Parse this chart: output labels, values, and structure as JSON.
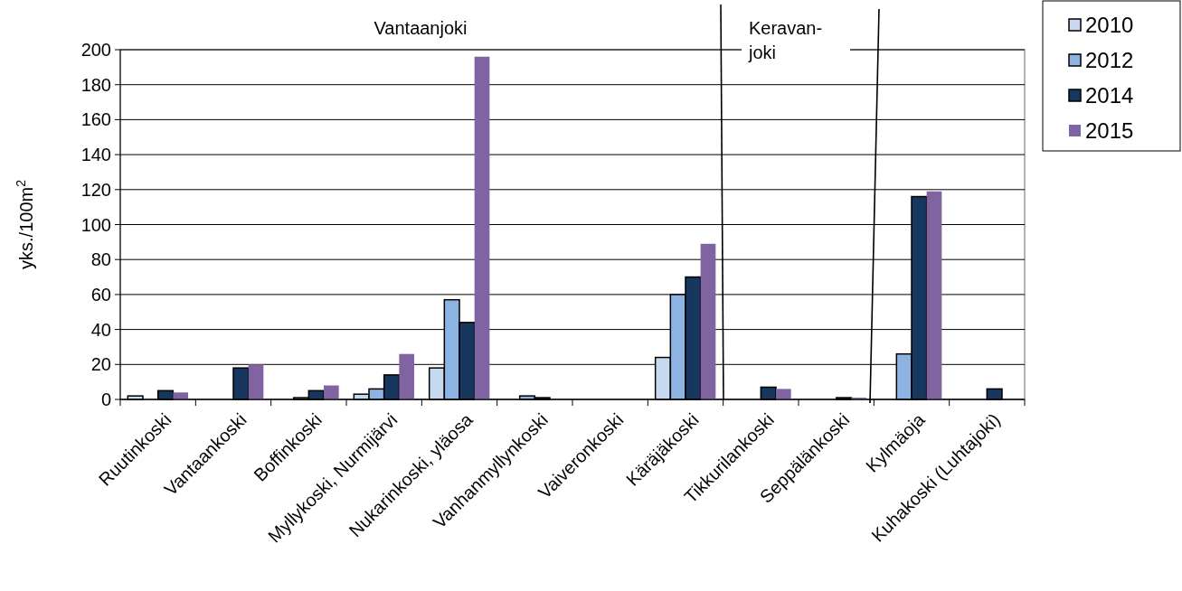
{
  "chart_data": {
    "type": "bar",
    "categories": [
      "Ruutinkoski",
      "Vantaankoski",
      "Boffinkoski",
      "Myllykoski, Nurmijärvi",
      "Nukarinkoski, yläosa",
      "Vanhanmyllynkoski",
      "Vaiveronkoski",
      "Käräjäkoski",
      "Tikkurilankoski",
      "Seppälänkoski",
      "Kylmäoja",
      "Kuhakoski (Luhtajoki)"
    ],
    "series": [
      {
        "name": "2010",
        "color": "#c6d9f0",
        "values": [
          2,
          null,
          null,
          3,
          18,
          null,
          null,
          24,
          null,
          null,
          null,
          null
        ]
      },
      {
        "name": "2012",
        "color": "#8db3e2",
        "values": [
          null,
          null,
          1,
          6,
          57,
          2,
          null,
          60,
          null,
          null,
          26,
          null
        ]
      },
      {
        "name": "2014",
        "color": "#17375e",
        "values": [
          5,
          18,
          5,
          14,
          44,
          1,
          null,
          70,
          7,
          1,
          116,
          6
        ]
      },
      {
        "name": "2015",
        "color": "#8064a2",
        "values": [
          4,
          20,
          8,
          26,
          196,
          null,
          null,
          89,
          6,
          1,
          119,
          null
        ]
      }
    ],
    "ylabel": "yks./100m$^{2}$",
    "ylim": [
      0,
      200
    ],
    "yticks": [
      0,
      20,
      40,
      60,
      80,
      100,
      120,
      140,
      160,
      180,
      200
    ],
    "grid": "y",
    "legend": "top right",
    "annotations": [
      "Vantaanjoki",
      "Keravan-\njoki"
    ]
  }
}
